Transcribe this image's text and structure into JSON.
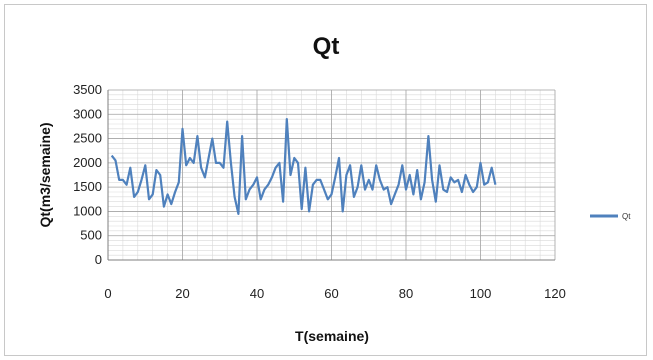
{
  "chart_data": {
    "type": "line",
    "title": "Qt",
    "xlabel": "T(semaine)",
    "ylabel": "Qt(m3/semaine)",
    "xlim": [
      0,
      120
    ],
    "ylim": [
      0,
      3500
    ],
    "xticks": [
      0,
      20,
      40,
      60,
      80,
      100,
      120
    ],
    "yticks": [
      0,
      500,
      1000,
      1500,
      2000,
      2500,
      3000,
      3500
    ],
    "grid": true,
    "legend_position": "right",
    "series": [
      {
        "name": "Qt",
        "color": "#4f81bd",
        "x": [
          1,
          2,
          3,
          4,
          5,
          6,
          7,
          8,
          9,
          10,
          11,
          12,
          13,
          14,
          15,
          16,
          17,
          18,
          19,
          20,
          21,
          22,
          23,
          24,
          25,
          26,
          27,
          28,
          29,
          30,
          31,
          32,
          33,
          34,
          35,
          36,
          37,
          38,
          39,
          40,
          41,
          42,
          43,
          44,
          45,
          46,
          47,
          48,
          49,
          50,
          51,
          52,
          53,
          54,
          55,
          56,
          57,
          58,
          59,
          60,
          61,
          62,
          63,
          64,
          65,
          66,
          67,
          68,
          69,
          70,
          71,
          72,
          73,
          74,
          75,
          76,
          77,
          78,
          79,
          80,
          81,
          82,
          83,
          84,
          85,
          86,
          87,
          88,
          89,
          90,
          91,
          92,
          93,
          94,
          95,
          96,
          97,
          98,
          99,
          100,
          101,
          102,
          103,
          104
        ],
        "values": [
          2150,
          2050,
          1650,
          1650,
          1550,
          1900,
          1300,
          1400,
          1650,
          1950,
          1250,
          1350,
          1850,
          1750,
          1100,
          1350,
          1150,
          1400,
          1600,
          2700,
          1950,
          2100,
          2000,
          2550,
          1900,
          1700,
          2100,
          2500,
          2000,
          2000,
          1900,
          2850,
          2000,
          1300,
          950,
          2550,
          1250,
          1450,
          1550,
          1700,
          1250,
          1450,
          1550,
          1700,
          1900,
          2000,
          1200,
          2900,
          1750,
          2100,
          2000,
          1050,
          1900,
          1000,
          1550,
          1650,
          1650,
          1450,
          1250,
          1350,
          1700,
          2100,
          1000,
          1750,
          1950,
          1300,
          1500,
          1950,
          1450,
          1650,
          1450,
          1950,
          1650,
          1450,
          1500,
          1150,
          1350,
          1550,
          1950,
          1450,
          1750,
          1350,
          1850,
          1250,
          1600,
          2550,
          1650,
          1200,
          1950,
          1450,
          1400,
          1700,
          1600,
          1650,
          1400,
          1750,
          1550,
          1400,
          1500,
          2000,
          1550,
          1600,
          1900,
          1550
        ]
      }
    ]
  }
}
